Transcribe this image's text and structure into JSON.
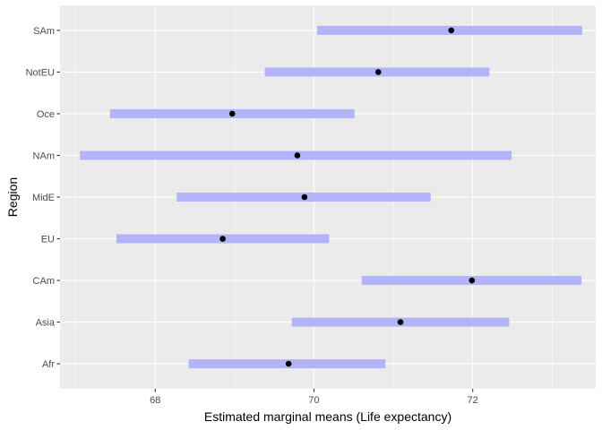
{
  "chart_data": {
    "type": "interval",
    "xlabel": "Estimated marginal means (Life expectancy)",
    "ylabel": "Region",
    "xlim": [
      66.8,
      73.55
    ],
    "x_ticks": [
      68,
      70,
      72
    ],
    "x_tick_labels": [
      "68",
      "70",
      "72"
    ],
    "categories": [
      "Afr",
      "Asia",
      "CAm",
      "EU",
      "MidE",
      "NAm",
      "Oce",
      "NotEU",
      "SAm"
    ],
    "estimate": [
      69.68,
      71.09,
      71.99,
      68.85,
      69.88,
      69.79,
      68.97,
      70.81,
      71.73
    ],
    "lower": [
      68.42,
      69.72,
      70.6,
      67.51,
      68.27,
      67.05,
      67.43,
      69.38,
      70.04
    ],
    "upper": [
      70.9,
      72.46,
      73.37,
      70.19,
      71.47,
      72.49,
      70.51,
      72.21,
      73.38
    ],
    "grid": true,
    "colors": {
      "panel": "#EBEBEB",
      "grid_major": "#FFFFFF",
      "interval": "#B3B3F9",
      "point": "#000000",
      "tick": "#333333"
    }
  }
}
